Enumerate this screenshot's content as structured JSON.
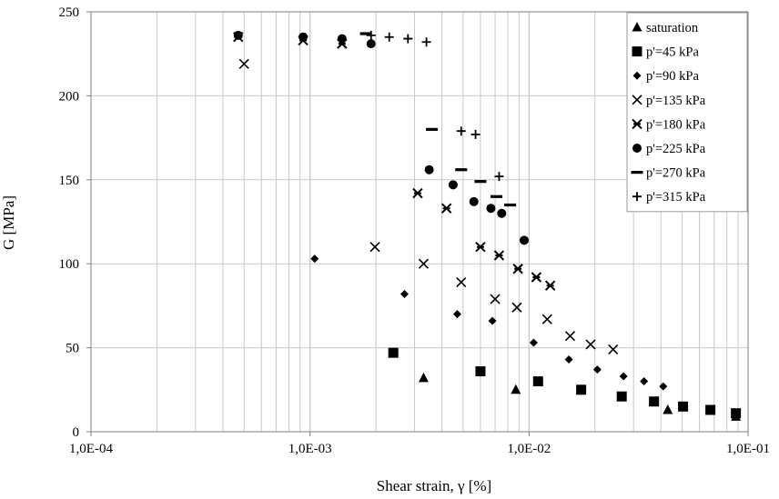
{
  "chart_data": {
    "type": "scatter",
    "xlabel": "Shear strain, γ [%]",
    "ylabel": "G [MPa]",
    "x_scale": "log",
    "xlim": [
      0.0001,
      0.1
    ],
    "ylim": [
      0,
      250
    ],
    "x_ticks": [
      0.0001,
      0.001,
      0.01,
      0.1
    ],
    "x_tick_labels": [
      "1,0E-04",
      "1,0E-03",
      "1,0E-02",
      "1,0E-01"
    ],
    "y_ticks": [
      0,
      50,
      100,
      150,
      200,
      250
    ],
    "y_tick_labels": [
      "0",
      "50",
      "100",
      "150",
      "200",
      "250"
    ],
    "grid": "vertical log minor and major lines; horizontal major lines",
    "legend_position": "top-right",
    "series": [
      {
        "name": "saturation",
        "marker": "triangle",
        "points": [
          [
            0.0033,
            32
          ],
          [
            0.0087,
            25
          ],
          [
            0.043,
            13
          ],
          [
            0.088,
            9
          ]
        ]
      },
      {
        "name": "p'=45 kPa",
        "marker": "square",
        "points": [
          [
            0.0024,
            47
          ],
          [
            0.006,
            36
          ],
          [
            0.011,
            30
          ],
          [
            0.0173,
            25
          ],
          [
            0.0265,
            21
          ],
          [
            0.0372,
            18
          ],
          [
            0.0505,
            15
          ],
          [
            0.0673,
            13
          ],
          [
            0.088,
            11
          ]
        ]
      },
      {
        "name": "p'=90 kPa",
        "marker": "diamond",
        "points": [
          [
            0.00105,
            103
          ],
          [
            0.0027,
            82
          ],
          [
            0.0047,
            70
          ],
          [
            0.0068,
            66
          ],
          [
            0.0105,
            53
          ],
          [
            0.0152,
            43
          ],
          [
            0.0205,
            37
          ],
          [
            0.027,
            33
          ],
          [
            0.0335,
            30
          ],
          [
            0.041,
            27
          ]
        ]
      },
      {
        "name": "p'=135 kPa",
        "marker": "x",
        "points": [
          [
            0.0005,
            219
          ],
          [
            0.00198,
            110
          ],
          [
            0.0033,
            100
          ],
          [
            0.0049,
            89
          ],
          [
            0.007,
            79
          ],
          [
            0.0088,
            74
          ],
          [
            0.0121,
            67
          ],
          [
            0.0154,
            57
          ],
          [
            0.0191,
            52
          ],
          [
            0.0242,
            49
          ]
        ]
      },
      {
        "name": "p'=180 kPa",
        "marker": "asterisk-x",
        "points": [
          [
            0.00047,
            235
          ],
          [
            0.00093,
            233
          ],
          [
            0.0014,
            231
          ],
          [
            0.0031,
            142
          ],
          [
            0.0042,
            133
          ],
          [
            0.006,
            110
          ],
          [
            0.0073,
            105
          ],
          [
            0.0089,
            97
          ],
          [
            0.0108,
            92
          ],
          [
            0.0125,
            87
          ]
        ]
      },
      {
        "name": "p'=225 kPa",
        "marker": "circle",
        "points": [
          [
            0.00047,
            236
          ],
          [
            0.00093,
            235
          ],
          [
            0.0014,
            234
          ],
          [
            0.0019,
            231
          ],
          [
            0.0035,
            156
          ],
          [
            0.0045,
            147
          ],
          [
            0.0056,
            137
          ],
          [
            0.0067,
            133
          ],
          [
            0.0075,
            130
          ],
          [
            0.0095,
            114
          ]
        ]
      },
      {
        "name": "p'=270 kPa",
        "marker": "dash",
        "points": [
          [
            0.0018,
            237
          ],
          [
            0.0036,
            180
          ],
          [
            0.0049,
            156
          ],
          [
            0.006,
            149
          ],
          [
            0.0071,
            140
          ],
          [
            0.0082,
            135
          ]
        ]
      },
      {
        "name": "p'=315 kPa",
        "marker": "plus",
        "points": [
          [
            0.0019,
            236
          ],
          [
            0.0023,
            235
          ],
          [
            0.0028,
            234
          ],
          [
            0.0034,
            232
          ],
          [
            0.0049,
            179
          ],
          [
            0.0057,
            177
          ],
          [
            0.0073,
            152
          ]
        ]
      }
    ]
  }
}
